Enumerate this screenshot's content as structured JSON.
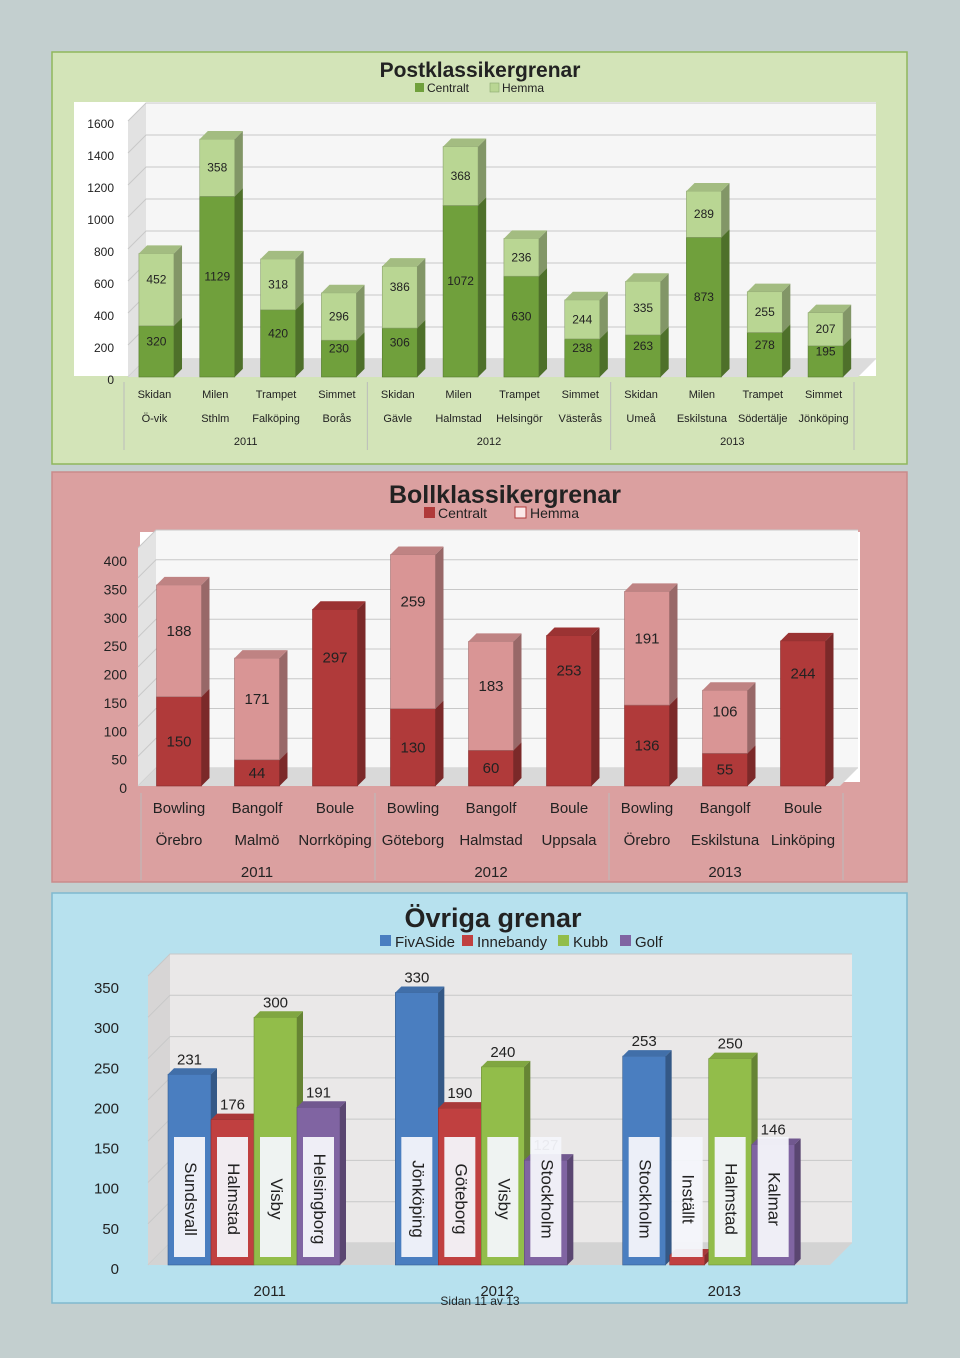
{
  "footer": "Sidan 11 av 13",
  "chart_data": [
    {
      "type": "bar",
      "stacked": true,
      "title": "Postklassikergrenar",
      "legend": [
        "Centralt",
        "Hemma"
      ],
      "legend_position": "top",
      "colors": {
        "Centralt": "#70a03c",
        "Hemma": "#b9d693",
        "panel": "#d3e4b8",
        "border": "#8fb75c"
      },
      "ylim": [
        0,
        1600
      ],
      "yticks": [
        0,
        200,
        400,
        600,
        800,
        1000,
        1200,
        1400,
        1600
      ],
      "categories": [
        {
          "event": "Skidan",
          "city": "Ö-vik"
        },
        {
          "event": "Milen",
          "city": "Sthlm"
        },
        {
          "event": "Trampet",
          "city": "Falköping"
        },
        {
          "event": "Simmet",
          "city": "Borås"
        },
        {
          "event": "Skidan",
          "city": "Gävle"
        },
        {
          "event": "Milen",
          "city": "Halmstad"
        },
        {
          "event": "Trampet",
          "city": "Helsingör"
        },
        {
          "event": "Simmet",
          "city": "Västerås"
        },
        {
          "event": "Skidan",
          "city": "Umeå"
        },
        {
          "event": "Milen",
          "city": "Eskilstuna"
        },
        {
          "event": "Trampet",
          "city": "Södertälje"
        },
        {
          "event": "Simmet",
          "city": "Jönköping"
        }
      ],
      "groups": [
        {
          "label": "2011",
          "count": 4
        },
        {
          "label": "2012",
          "count": 4
        },
        {
          "label": "2013",
          "count": 4
        }
      ],
      "series": [
        {
          "name": "Centralt",
          "values": [
            320,
            1129,
            420,
            230,
            306,
            1072,
            630,
            238,
            263,
            873,
            278,
            195
          ]
        },
        {
          "name": "Hemma",
          "values": [
            452,
            358,
            318,
            296,
            386,
            368,
            236,
            244,
            335,
            289,
            255,
            207
          ]
        }
      ]
    },
    {
      "type": "bar",
      "stacked": true,
      "title": "Bollklassikergrenar",
      "legend": [
        "Centralt",
        "Hemma"
      ],
      "legend_position": "top",
      "colors": {
        "Centralt": "#b03a3a",
        "Hemma": "#d99595",
        "panel": "#dba0a0",
        "border": "#c98b8b"
      },
      "ylim": [
        0,
        400
      ],
      "yticks": [
        0,
        50,
        100,
        150,
        200,
        250,
        300,
        350,
        400
      ],
      "categories": [
        {
          "event": "Bowling",
          "city": "Örebro"
        },
        {
          "event": "Bangolf",
          "city": "Malmö"
        },
        {
          "event": "Boule",
          "city": "Norrköping"
        },
        {
          "event": "Bowling",
          "city": "Göteborg"
        },
        {
          "event": "Bangolf",
          "city": "Halmstad"
        },
        {
          "event": "Boule",
          "city": "Uppsala"
        },
        {
          "event": "Bowling",
          "city": "Örebro"
        },
        {
          "event": "Bangolf",
          "city": "Eskilstuna"
        },
        {
          "event": "Boule",
          "city": "Linköping"
        }
      ],
      "groups": [
        {
          "label": "2011",
          "count": 3
        },
        {
          "label": "2012",
          "count": 3
        },
        {
          "label": "2013",
          "count": 3
        }
      ],
      "series": [
        {
          "name": "Centralt",
          "values": [
            150,
            44,
            297,
            130,
            60,
            253,
            136,
            55,
            244
          ]
        },
        {
          "name": "Hemma",
          "values": [
            188,
            171,
            null,
            259,
            183,
            null,
            191,
            106,
            null
          ]
        }
      ]
    },
    {
      "type": "bar",
      "stacked": false,
      "title": "Övriga grenar",
      "legend": [
        "FivASide",
        "Innebandy",
        "Kubb",
        "Golf"
      ],
      "legend_position": "top",
      "colors": {
        "FivASide": "#4a7ec0",
        "Innebandy": "#c04040",
        "Kubb": "#92bd4a",
        "Golf": "#8064a2",
        "panel": "#b7e1ee",
        "border": "#7fb9cf"
      },
      "ylim": [
        0,
        350
      ],
      "yticks": [
        0,
        50,
        100,
        150,
        200,
        250,
        300,
        350
      ],
      "groups": [
        {
          "label": "2011",
          "bars": [
            {
              "series": "FivASide",
              "value": 231,
              "city": "Sundsvall"
            },
            {
              "series": "Innebandy",
              "value": 176,
              "city": "Halmstad"
            },
            {
              "series": "Kubb",
              "value": 300,
              "city": "Visby"
            },
            {
              "series": "Golf",
              "value": 191,
              "city": "Helsingborg"
            }
          ]
        },
        {
          "label": "2012",
          "bars": [
            {
              "series": "FivASide",
              "value": 330,
              "city": "Jönköping"
            },
            {
              "series": "Innebandy",
              "value": 190,
              "city": "Göteborg"
            },
            {
              "series": "Kubb",
              "value": 240,
              "city": "Visby"
            },
            {
              "series": "Golf",
              "value": 127,
              "city": "Stockholm"
            }
          ]
        },
        {
          "label": "2013",
          "bars": [
            {
              "series": "FivASide",
              "value": 253,
              "city": "Stockholm"
            },
            {
              "series": "Innebandy",
              "value": null,
              "city": "Inställt"
            },
            {
              "series": "Kubb",
              "value": 250,
              "city": "Halmstad"
            },
            {
              "series": "Golf",
              "value": 146,
              "city": "Kalmar"
            }
          ]
        }
      ]
    }
  ]
}
